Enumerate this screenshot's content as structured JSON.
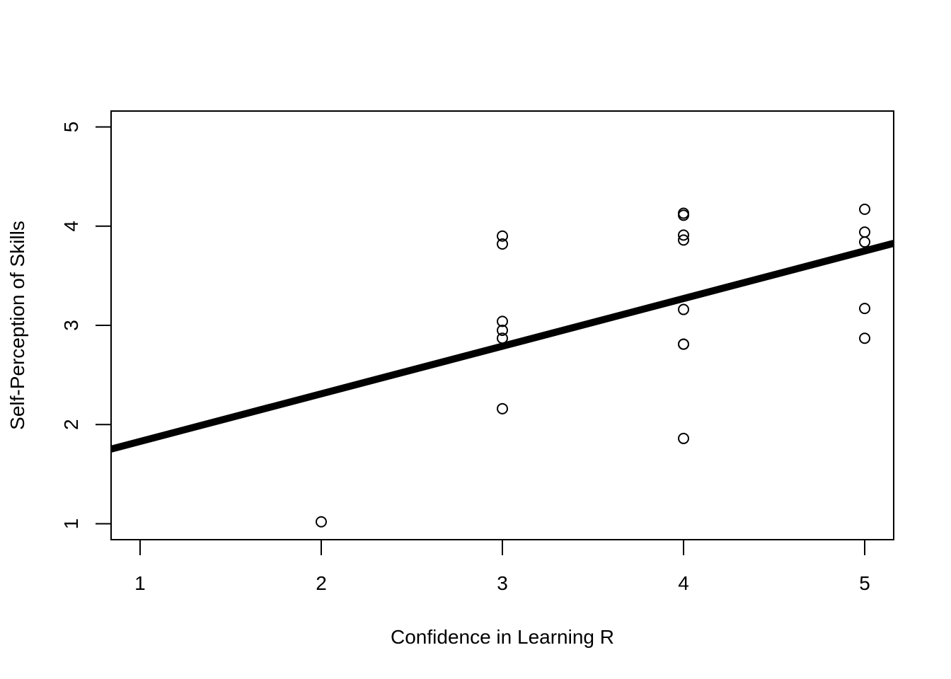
{
  "chart_data": {
    "type": "scatter",
    "title": "",
    "xlabel": "Confidence in Learning R",
    "ylabel": "Self-Perception of Skills",
    "xlim": [
      0.84,
      5.16
    ],
    "ylim": [
      0.84,
      5.16
    ],
    "xticks": [
      "1",
      "2",
      "3",
      "4",
      "5"
    ],
    "yticks": [
      "1",
      "2",
      "3",
      "4",
      "5"
    ],
    "grid": false,
    "points": [
      {
        "x": 2,
        "y": 1.02
      },
      {
        "x": 3,
        "y": 3.9
      },
      {
        "x": 3,
        "y": 3.82
      },
      {
        "x": 3,
        "y": 3.04
      },
      {
        "x": 3,
        "y": 2.95
      },
      {
        "x": 3,
        "y": 2.87
      },
      {
        "x": 3,
        "y": 2.16
      },
      {
        "x": 4,
        "y": 4.13
      },
      {
        "x": 4,
        "y": 4.11
      },
      {
        "x": 4,
        "y": 3.91
      },
      {
        "x": 4,
        "y": 3.86
      },
      {
        "x": 4,
        "y": 3.16
      },
      {
        "x": 4,
        "y": 2.81
      },
      {
        "x": 4,
        "y": 2.81
      },
      {
        "x": 4,
        "y": 1.86
      },
      {
        "x": 5,
        "y": 4.17
      },
      {
        "x": 5,
        "y": 3.94
      },
      {
        "x": 5,
        "y": 3.84
      },
      {
        "x": 5,
        "y": 3.17
      },
      {
        "x": 5,
        "y": 2.87
      }
    ],
    "regression_line": {
      "intercept": 1.35,
      "slope": 0.48
    }
  }
}
